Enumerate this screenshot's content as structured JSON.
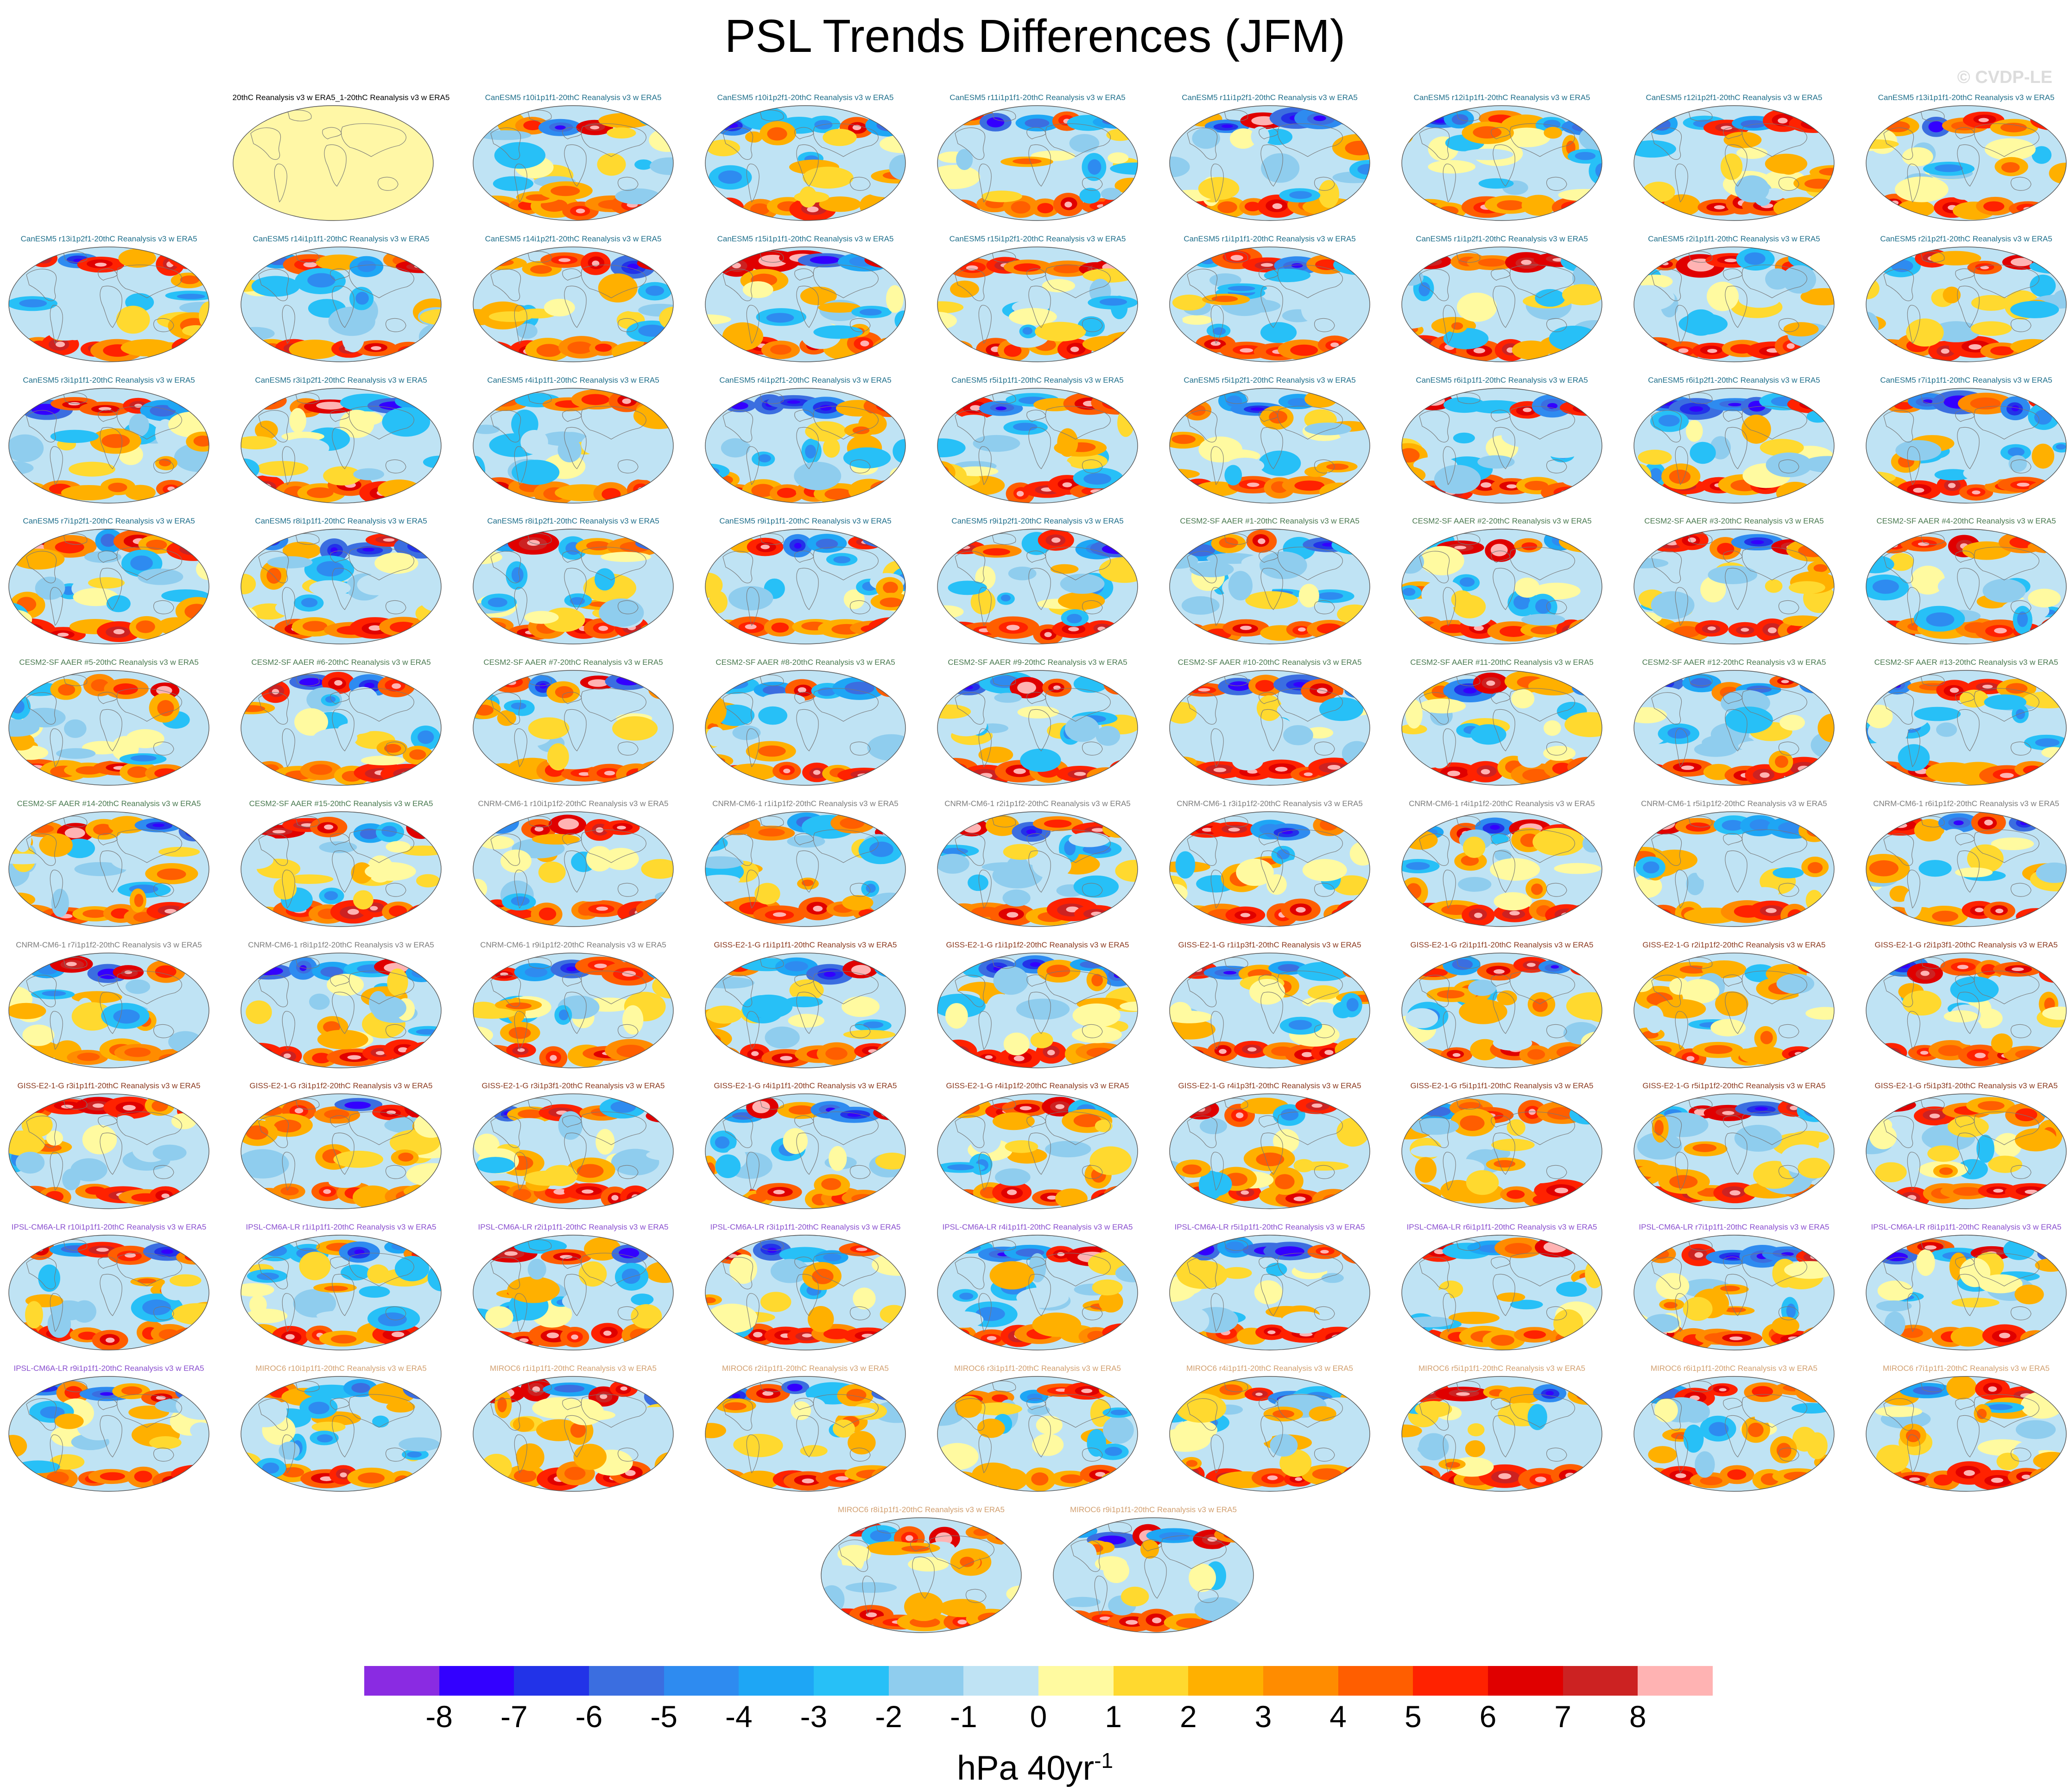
{
  "title": "PSL Trends Differences (JFM)",
  "watermark": "© CVDP-LE",
  "units": {
    "base": "hPa 40yr",
    "exp": "-1"
  },
  "colorbar": {
    "colors": [
      "#8a2be2",
      "#3300ff",
      "#2233e8",
      "#3b6ee0",
      "#2e8bf0",
      "#1ea6f5",
      "#27c0f7",
      "#8fcdee",
      "#bfe3f4",
      "#fffaa0",
      "#ffd92f",
      "#ffb000",
      "#ff8c00",
      "#ff5e00",
      "#ff2200",
      "#e00000",
      "#cc2222",
      "#ffb3b3"
    ],
    "labels": [
      "-8",
      "-7",
      "-6",
      "-5",
      "-4",
      "-3",
      "-2",
      "-1",
      "0",
      "1",
      "2",
      "3",
      "4",
      "5",
      "6",
      "7",
      "8"
    ]
  },
  "model_colors": {
    "obs": "#000000",
    "CanESM5": "#1f6f8b",
    "CESM2-SF AAER": "#4a7a50",
    "CNRM-CM6-1": "#7d7d7d",
    "GISS-E2-1-G": "#8b3a1f",
    "IPSL-CM6A-LR": "#8a4fcf",
    "MIROC6": "#d2a070"
  },
  "panels": [
    {
      "title": "20thC Reanalysis v3 w ERA5_1-20thC Reanalysis v3 w ERA5",
      "model": "obs",
      "blank": true
    },
    {
      "title": "CanESM5 r10i1p1f1-20thC Reanalysis v3 w ERA5",
      "model": "CanESM5"
    },
    {
      "title": "CanESM5 r10i1p2f1-20thC Reanalysis v3 w ERA5",
      "model": "CanESM5"
    },
    {
      "title": "CanESM5 r11i1p1f1-20thC Reanalysis v3 w ERA5",
      "model": "CanESM5"
    },
    {
      "title": "CanESM5 r11i1p2f1-20thC Reanalysis v3 w ERA5",
      "model": "CanESM5"
    },
    {
      "title": "CanESM5 r12i1p1f1-20thC Reanalysis v3 w ERA5",
      "model": "CanESM5"
    },
    {
      "title": "CanESM5 r12i1p2f1-20thC Reanalysis v3 w ERA5",
      "model": "CanESM5"
    },
    {
      "title": "CanESM5 r13i1p1f1-20thC Reanalysis v3 w ERA5",
      "model": "CanESM5"
    },
    {
      "title": "CanESM5 r13i1p2f1-20thC Reanalysis v3 w ERA5",
      "model": "CanESM5"
    },
    {
      "title": "CanESM5 r14i1p1f1-20thC Reanalysis v3 w ERA5",
      "model": "CanESM5"
    },
    {
      "title": "CanESM5 r14i1p2f1-20thC Reanalysis v3 w ERA5",
      "model": "CanESM5"
    },
    {
      "title": "CanESM5 r15i1p1f1-20thC Reanalysis v3 w ERA5",
      "model": "CanESM5"
    },
    {
      "title": "CanESM5 r15i1p2f1-20thC Reanalysis v3 w ERA5",
      "model": "CanESM5"
    },
    {
      "title": "CanESM5 r1i1p1f1-20thC Reanalysis v3 w ERA5",
      "model": "CanESM5"
    },
    {
      "title": "CanESM5 r1i1p2f1-20thC Reanalysis v3 w ERA5",
      "model": "CanESM5"
    },
    {
      "title": "CanESM5 r2i1p1f1-20thC Reanalysis v3 w ERA5",
      "model": "CanESM5"
    },
    {
      "title": "CanESM5 r2i1p2f1-20thC Reanalysis v3 w ERA5",
      "model": "CanESM5"
    },
    {
      "title": "CanESM5 r3i1p1f1-20thC Reanalysis v3 w ERA5",
      "model": "CanESM5"
    },
    {
      "title": "CanESM5 r3i1p2f1-20thC Reanalysis v3 w ERA5",
      "model": "CanESM5"
    },
    {
      "title": "CanESM5 r4i1p1f1-20thC Reanalysis v3 w ERA5",
      "model": "CanESM5"
    },
    {
      "title": "CanESM5 r4i1p2f1-20thC Reanalysis v3 w ERA5",
      "model": "CanESM5"
    },
    {
      "title": "CanESM5 r5i1p1f1-20thC Reanalysis v3 w ERA5",
      "model": "CanESM5"
    },
    {
      "title": "CanESM5 r5i1p2f1-20thC Reanalysis v3 w ERA5",
      "model": "CanESM5"
    },
    {
      "title": "CanESM5 r6i1p1f1-20thC Reanalysis v3 w ERA5",
      "model": "CanESM5"
    },
    {
      "title": "CanESM5 r6i1p2f1-20thC Reanalysis v3 w ERA5",
      "model": "CanESM5"
    },
    {
      "title": "CanESM5 r7i1p1f1-20thC Reanalysis v3 w ERA5",
      "model": "CanESM5"
    },
    {
      "title": "CanESM5 r7i1p2f1-20thC Reanalysis v3 w ERA5",
      "model": "CanESM5"
    },
    {
      "title": "CanESM5 r8i1p1f1-20thC Reanalysis v3 w ERA5",
      "model": "CanESM5"
    },
    {
      "title": "CanESM5 r8i1p2f1-20thC Reanalysis v3 w ERA5",
      "model": "CanESM5"
    },
    {
      "title": "CanESM5 r9i1p1f1-20thC Reanalysis v3 w ERA5",
      "model": "CanESM5"
    },
    {
      "title": "CanESM5 r9i1p2f1-20thC Reanalysis v3 w ERA5",
      "model": "CanESM5"
    },
    {
      "title": "CESM2-SF AAER #1-20thC Reanalysis v3 w ERA5",
      "model": "CESM2-SF AAER"
    },
    {
      "title": "CESM2-SF AAER #2-20thC Reanalysis v3 w ERA5",
      "model": "CESM2-SF AAER"
    },
    {
      "title": "CESM2-SF AAER #3-20thC Reanalysis v3 w ERA5",
      "model": "CESM2-SF AAER"
    },
    {
      "title": "CESM2-SF AAER #4-20thC Reanalysis v3 w ERA5",
      "model": "CESM2-SF AAER"
    },
    {
      "title": "CESM2-SF AAER #5-20thC Reanalysis v3 w ERA5",
      "model": "CESM2-SF AAER"
    },
    {
      "title": "CESM2-SF AAER #6-20thC Reanalysis v3 w ERA5",
      "model": "CESM2-SF AAER"
    },
    {
      "title": "CESM2-SF AAER #7-20thC Reanalysis v3 w ERA5",
      "model": "CESM2-SF AAER"
    },
    {
      "title": "CESM2-SF AAER #8-20thC Reanalysis v3 w ERA5",
      "model": "CESM2-SF AAER"
    },
    {
      "title": "CESM2-SF AAER #9-20thC Reanalysis v3 w ERA5",
      "model": "CESM2-SF AAER"
    },
    {
      "title": "CESM2-SF AAER #10-20thC Reanalysis v3 w ERA5",
      "model": "CESM2-SF AAER"
    },
    {
      "title": "CESM2-SF AAER #11-20thC Reanalysis v3 w ERA5",
      "model": "CESM2-SF AAER"
    },
    {
      "title": "CESM2-SF AAER #12-20thC Reanalysis v3 w ERA5",
      "model": "CESM2-SF AAER"
    },
    {
      "title": "CESM2-SF AAER #13-20thC Reanalysis v3 w ERA5",
      "model": "CESM2-SF AAER"
    },
    {
      "title": "CESM2-SF AAER #14-20thC Reanalysis v3 w ERA5",
      "model": "CESM2-SF AAER"
    },
    {
      "title": "CESM2-SF AAER #15-20thC Reanalysis v3 w ERA5",
      "model": "CESM2-SF AAER"
    },
    {
      "title": "CNRM-CM6-1 r10i1p1f2-20thC Reanalysis v3 w ERA5",
      "model": "CNRM-CM6-1"
    },
    {
      "title": "CNRM-CM6-1 r1i1p1f2-20thC Reanalysis v3 w ERA5",
      "model": "CNRM-CM6-1"
    },
    {
      "title": "CNRM-CM6-1 r2i1p1f2-20thC Reanalysis v3 w ERA5",
      "model": "CNRM-CM6-1"
    },
    {
      "title": "CNRM-CM6-1 r3i1p1f2-20thC Reanalysis v3 w ERA5",
      "model": "CNRM-CM6-1"
    },
    {
      "title": "CNRM-CM6-1 r4i1p1f2-20thC Reanalysis v3 w ERA5",
      "model": "CNRM-CM6-1"
    },
    {
      "title": "CNRM-CM6-1 r5i1p1f2-20thC Reanalysis v3 w ERA5",
      "model": "CNRM-CM6-1"
    },
    {
      "title": "CNRM-CM6-1 r6i1p1f2-20thC Reanalysis v3 w ERA5",
      "model": "CNRM-CM6-1"
    },
    {
      "title": "CNRM-CM6-1 r7i1p1f2-20thC Reanalysis v3 w ERA5",
      "model": "CNRM-CM6-1"
    },
    {
      "title": "CNRM-CM6-1 r8i1p1f2-20thC Reanalysis v3 w ERA5",
      "model": "CNRM-CM6-1"
    },
    {
      "title": "CNRM-CM6-1 r9i1p1f2-20thC Reanalysis v3 w ERA5",
      "model": "CNRM-CM6-1"
    },
    {
      "title": "GISS-E2-1-G r1i1p1f1-20thC Reanalysis v3 w ERA5",
      "model": "GISS-E2-1-G"
    },
    {
      "title": "GISS-E2-1-G r1i1p1f2-20thC Reanalysis v3 w ERA5",
      "model": "GISS-E2-1-G"
    },
    {
      "title": "GISS-E2-1-G r1i1p3f1-20thC Reanalysis v3 w ERA5",
      "model": "GISS-E2-1-G"
    },
    {
      "title": "GISS-E2-1-G r2i1p1f1-20thC Reanalysis v3 w ERA5",
      "model": "GISS-E2-1-G"
    },
    {
      "title": "GISS-E2-1-G r2i1p1f2-20thC Reanalysis v3 w ERA5",
      "model": "GISS-E2-1-G"
    },
    {
      "title": "GISS-E2-1-G r2i1p3f1-20thC Reanalysis v3 w ERA5",
      "model": "GISS-E2-1-G"
    },
    {
      "title": "GISS-E2-1-G r3i1p1f1-20thC Reanalysis v3 w ERA5",
      "model": "GISS-E2-1-G"
    },
    {
      "title": "GISS-E2-1-G r3i1p1f2-20thC Reanalysis v3 w ERA5",
      "model": "GISS-E2-1-G"
    },
    {
      "title": "GISS-E2-1-G r3i1p3f1-20thC Reanalysis v3 w ERA5",
      "model": "GISS-E2-1-G"
    },
    {
      "title": "GISS-E2-1-G r4i1p1f1-20thC Reanalysis v3 w ERA5",
      "model": "GISS-E2-1-G"
    },
    {
      "title": "GISS-E2-1-G r4i1p1f2-20thC Reanalysis v3 w ERA5",
      "model": "GISS-E2-1-G"
    },
    {
      "title": "GISS-E2-1-G r4i1p3f1-20thC Reanalysis v3 w ERA5",
      "model": "GISS-E2-1-G"
    },
    {
      "title": "GISS-E2-1-G r5i1p1f1-20thC Reanalysis v3 w ERA5",
      "model": "GISS-E2-1-G"
    },
    {
      "title": "GISS-E2-1-G r5i1p1f2-20thC Reanalysis v3 w ERA5",
      "model": "GISS-E2-1-G"
    },
    {
      "title": "GISS-E2-1-G r5i1p3f1-20thC Reanalysis v3 w ERA5",
      "model": "GISS-E2-1-G"
    },
    {
      "title": "IPSL-CM6A-LR r10i1p1f1-20thC Reanalysis v3 w ERA5",
      "model": "IPSL-CM6A-LR"
    },
    {
      "title": "IPSL-CM6A-LR r1i1p1f1-20thC Reanalysis v3 w ERA5",
      "model": "IPSL-CM6A-LR"
    },
    {
      "title": "IPSL-CM6A-LR r2i1p1f1-20thC Reanalysis v3 w ERA5",
      "model": "IPSL-CM6A-LR"
    },
    {
      "title": "IPSL-CM6A-LR r3i1p1f1-20thC Reanalysis v3 w ERA5",
      "model": "IPSL-CM6A-LR"
    },
    {
      "title": "IPSL-CM6A-LR r4i1p1f1-20thC Reanalysis v3 w ERA5",
      "model": "IPSL-CM6A-LR"
    },
    {
      "title": "IPSL-CM6A-LR r5i1p1f1-20thC Reanalysis v3 w ERA5",
      "model": "IPSL-CM6A-LR"
    },
    {
      "title": "IPSL-CM6A-LR r6i1p1f1-20thC Reanalysis v3 w ERA5",
      "model": "IPSL-CM6A-LR"
    },
    {
      "title": "IPSL-CM6A-LR r7i1p1f1-20thC Reanalysis v3 w ERA5",
      "model": "IPSL-CM6A-LR"
    },
    {
      "title": "IPSL-CM6A-LR r8i1p1f1-20thC Reanalysis v3 w ERA5",
      "model": "IPSL-CM6A-LR"
    },
    {
      "title": "IPSL-CM6A-LR r9i1p1f1-20thC Reanalysis v3 w ERA5",
      "model": "IPSL-CM6A-LR"
    },
    {
      "title": "MIROC6 r10i1p1f1-20thC Reanalysis v3 w ERA5",
      "model": "MIROC6"
    },
    {
      "title": "MIROC6 r1i1p1f1-20thC Reanalysis v3 w ERA5",
      "model": "MIROC6"
    },
    {
      "title": "MIROC6 r2i1p1f1-20thC Reanalysis v3 w ERA5",
      "model": "MIROC6"
    },
    {
      "title": "MIROC6 r3i1p1f1-20thC Reanalysis v3 w ERA5",
      "model": "MIROC6"
    },
    {
      "title": "MIROC6 r4i1p1f1-20thC Reanalysis v3 w ERA5",
      "model": "MIROC6"
    },
    {
      "title": "MIROC6 r5i1p1f1-20thC Reanalysis v3 w ERA5",
      "model": "MIROC6"
    },
    {
      "title": "MIROC6 r6i1p1f1-20thC Reanalysis v3 w ERA5",
      "model": "MIROC6"
    },
    {
      "title": "MIROC6 r7i1p1f1-20thC Reanalysis v3 w ERA5",
      "model": "MIROC6"
    },
    {
      "title": "MIROC6 r8i1p1f1-20thC Reanalysis v3 w ERA5",
      "model": "MIROC6"
    },
    {
      "title": "MIROC6 r9i1p1f1-20thC Reanalysis v3 w ERA5",
      "model": "MIROC6"
    }
  ]
}
